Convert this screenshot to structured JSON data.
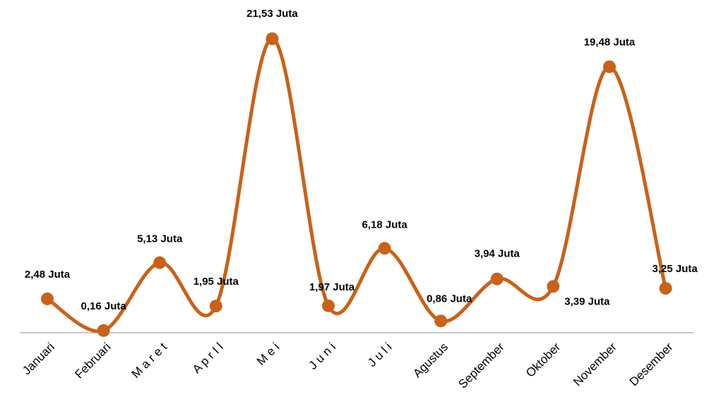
{
  "chart_data": {
    "type": "line",
    "categories": [
      "Januari",
      "Februari",
      "M a r e t",
      "A p r I l",
      "M e i",
      "J u n i",
      "J u l i",
      "Agustus",
      "September",
      "Oktober",
      "November",
      "Desember"
    ],
    "series": [
      {
        "color": "#c8621a",
        "values": [
          2.48,
          0.16,
          5.13,
          1.95,
          21.53,
          1.97,
          6.18,
          0.86,
          3.94,
          3.39,
          19.48,
          3.25
        ],
        "value_labels": [
          "2,48 Juta",
          "0,16 Juta",
          "5,13 Juta",
          "1,95 Juta",
          "21,53 Juta",
          "1,97 Juta",
          "6,18 Juta",
          "0,86 Juta",
          "3,94 Juta",
          "3,39 Juta",
          "19,48 Juta",
          "3,25 Juta"
        ]
      }
    ],
    "smooth": true
  }
}
